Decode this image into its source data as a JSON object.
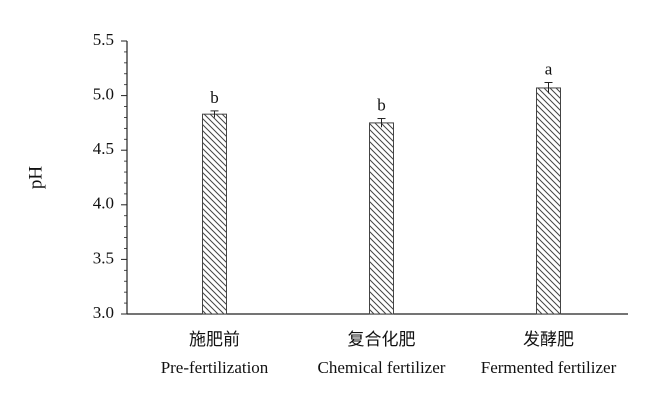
{
  "chart_data": {
    "type": "bar",
    "title": "",
    "xlabel": "",
    "ylabel": "pH",
    "ylim": [
      3.0,
      5.5
    ],
    "ytick_step": 0.5,
    "ytick_labels": [
      "3.0",
      "3.5",
      "4.0",
      "4.5",
      "5.0",
      "5.5"
    ],
    "grid": false,
    "legend": "none",
    "bar_fill": "diagonal-hatch",
    "bar_color": "#444444",
    "axis_color": "#222222",
    "categories": [
      {
        "zh": "施肥前",
        "en": "Pre-fertilization"
      },
      {
        "zh": "复合化肥",
        "en": "Chemical fertilizer"
      },
      {
        "zh": "发酵肥",
        "en": "Fermented fertilizer"
      }
    ],
    "values": [
      4.83,
      4.75,
      5.07
    ],
    "errors": [
      0.03,
      0.04,
      0.05
    ],
    "significance": [
      "b",
      "b",
      "a"
    ]
  }
}
